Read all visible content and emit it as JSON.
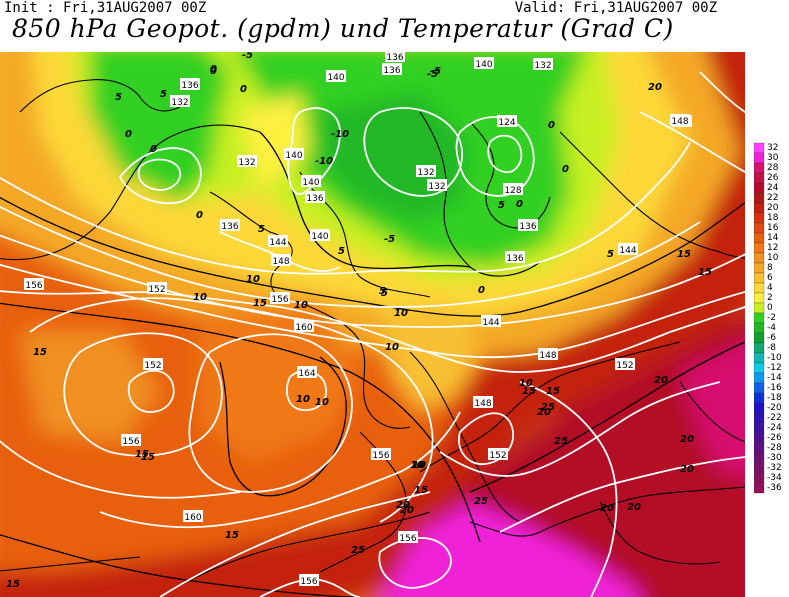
{
  "header": {
    "init": "Init : Fri,31AUG2007 00Z",
    "valid": "Valid: Fri,31AUG2007 00Z",
    "title": "850 hPa Geopot. (gpdm) und Temperatur (Grad C)"
  },
  "map": {
    "geopotential_labels": [
      {
        "text": "136"
      },
      {
        "text": "132"
      },
      {
        "text": "136"
      },
      {
        "text": "140"
      },
      {
        "text": "136"
      },
      {
        "text": "140"
      },
      {
        "text": "132"
      },
      {
        "text": "124"
      },
      {
        "text": "132"
      },
      {
        "text": "132"
      },
      {
        "text": "140"
      },
      {
        "text": "140"
      },
      {
        "text": "132"
      },
      {
        "text": "136"
      },
      {
        "text": "136"
      },
      {
        "text": "144"
      },
      {
        "text": "128"
      },
      {
        "text": "136"
      },
      {
        "text": "140"
      },
      {
        "text": "136"
      },
      {
        "text": "144"
      },
      {
        "text": "148"
      },
      {
        "text": "148"
      },
      {
        "text": "152"
      },
      {
        "text": "156"
      },
      {
        "text": "156"
      },
      {
        "text": "160"
      },
      {
        "text": "152"
      },
      {
        "text": "164"
      },
      {
        "text": "148"
      },
      {
        "text": "148"
      },
      {
        "text": "144"
      },
      {
        "text": "152"
      },
      {
        "text": "156"
      },
      {
        "text": "152"
      },
      {
        "text": "156"
      },
      {
        "text": "160"
      },
      {
        "text": "156"
      },
      {
        "text": "156"
      },
      {
        "text": "148"
      }
    ],
    "temperature_labels": [
      {
        "text": "5"
      },
      {
        "text": "0"
      },
      {
        "text": "0"
      },
      {
        "text": "-5"
      },
      {
        "text": "5"
      },
      {
        "text": "0"
      },
      {
        "text": "0"
      },
      {
        "text": "-5"
      },
      {
        "text": "-10"
      },
      {
        "text": "-10"
      },
      {
        "text": "-5"
      },
      {
        "text": "0"
      },
      {
        "text": "0"
      },
      {
        "text": "5"
      },
      {
        "text": "0"
      },
      {
        "text": "5"
      },
      {
        "text": "5"
      },
      {
        "text": "0"
      },
      {
        "text": "5"
      },
      {
        "text": "0"
      },
      {
        "text": "10"
      },
      {
        "text": "10"
      },
      {
        "text": "15"
      },
      {
        "text": "5"
      },
      {
        "text": "10"
      },
      {
        "text": "10"
      },
      {
        "text": "15"
      },
      {
        "text": "10"
      },
      {
        "text": "10"
      },
      {
        "text": "15"
      },
      {
        "text": "15"
      },
      {
        "text": "10"
      },
      {
        "text": "20"
      },
      {
        "text": "15"
      },
      {
        "text": "10"
      },
      {
        "text": "15"
      },
      {
        "text": "25"
      },
      {
        "text": "20"
      },
      {
        "text": "25"
      },
      {
        "text": "20"
      },
      {
        "text": "20"
      },
      {
        "text": "20"
      },
      {
        "text": "25"
      },
      {
        "text": "20"
      },
      {
        "text": "25"
      },
      {
        "text": "20"
      },
      {
        "text": "15"
      },
      {
        "text": "15"
      },
      {
        "text": "15"
      },
      {
        "text": "15"
      },
      {
        "text": "10"
      },
      {
        "text": "10"
      },
      {
        "text": "20"
      },
      {
        "text": "20"
      },
      {
        "text": "15"
      },
      {
        "text": "5"
      },
      {
        "text": "-5"
      },
      {
        "text": "0"
      }
    ]
  },
  "legend": {
    "entries": [
      {
        "label": "32",
        "color": "#ff40ff"
      },
      {
        "label": "30",
        "color": "#f020d8"
      },
      {
        "label": "28",
        "color": "#d81070"
      },
      {
        "label": "26",
        "color": "#c41048"
      },
      {
        "label": "24",
        "color": "#b40c28"
      },
      {
        "label": "22",
        "color": "#b01818"
      },
      {
        "label": "20",
        "color": "#c42010"
      },
      {
        "label": "18",
        "color": "#d83210"
      },
      {
        "label": "16",
        "color": "#e04810"
      },
      {
        "label": "14",
        "color": "#e86010"
      },
      {
        "label": "12",
        "color": "#f07818"
      },
      {
        "label": "10",
        "color": "#f09020"
      },
      {
        "label": "8",
        "color": "#f4a828"
      },
      {
        "label": "6",
        "color": "#f8c030"
      },
      {
        "label": "4",
        "color": "#fcd838"
      },
      {
        "label": "2",
        "color": "#fff040"
      },
      {
        "label": "0",
        "color": "#c8f020"
      },
      {
        "label": "-2",
        "color": "#30d020"
      },
      {
        "label": "-4",
        "color": "#20b828"
      },
      {
        "label": "-6",
        "color": "#10a030"
      },
      {
        "label": "-8",
        "color": "#10a870"
      },
      {
        "label": "-10",
        "color": "#10b8b8"
      },
      {
        "label": "-12",
        "color": "#10c8e8"
      },
      {
        "label": "-14",
        "color": "#1098f0"
      },
      {
        "label": "-16",
        "color": "#1060e8"
      },
      {
        "label": "-18",
        "color": "#1030d8"
      },
      {
        "label": "-20",
        "color": "#2010c8"
      },
      {
        "label": "-22",
        "color": "#3010b0"
      },
      {
        "label": "-24",
        "color": "#4010a0"
      },
      {
        "label": "-26",
        "color": "#501090"
      },
      {
        "label": "-28",
        "color": "#601080"
      },
      {
        "label": "-30",
        "color": "#701070"
      },
      {
        "label": "-32",
        "color": "#7c1068"
      },
      {
        "label": "-34",
        "color": "#881060"
      },
      {
        "label": "-36",
        "color": "#941058"
      }
    ]
  }
}
